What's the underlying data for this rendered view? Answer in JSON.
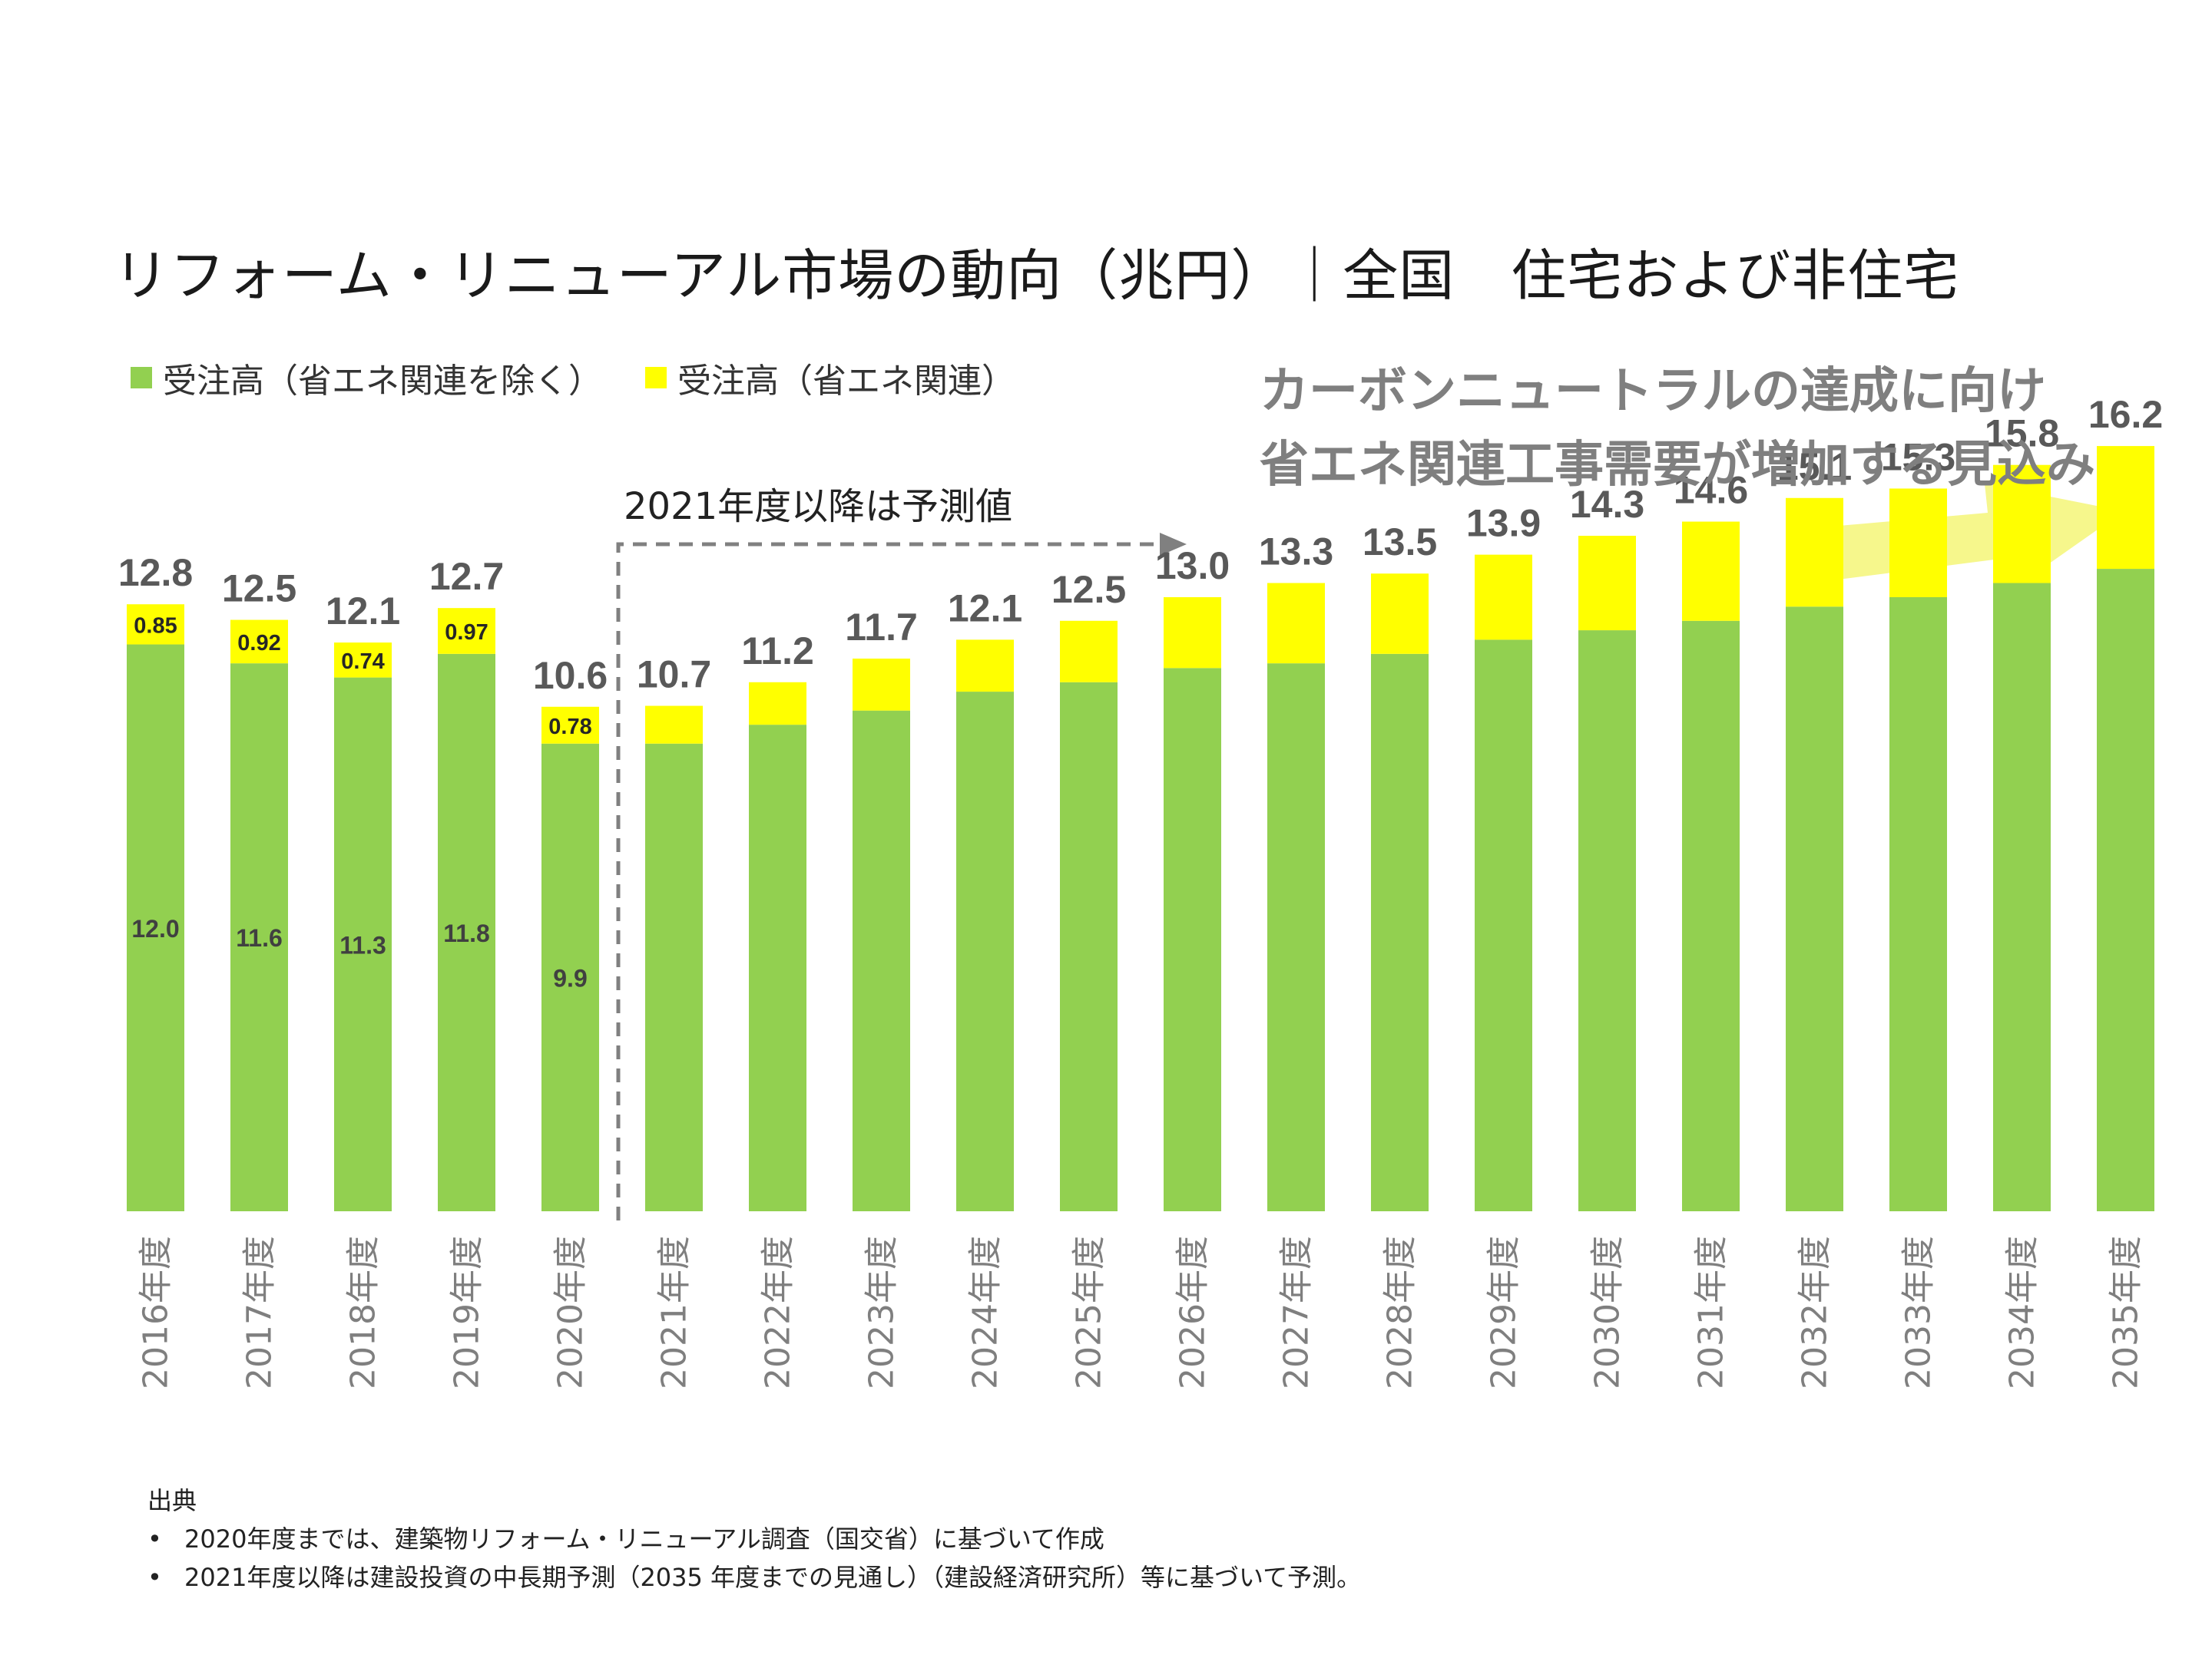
{
  "page": {
    "title": "リフォーム・リニューアル市場の動向（兆円）｜全国　住宅および非住宅",
    "legend": [
      {
        "label": "受注高（省エネ関連を除く）",
        "color": "#92d050"
      },
      {
        "label": "受注高（省エネ関連）",
        "color": "#ffff00"
      }
    ],
    "headline_line1": "カーボンニュートラルの達成に向け",
    "headline_line2": "省エネ関連工事需要が増加する見込み",
    "forecast_note": "2021年度以降は予測値",
    "source": {
      "heading": "出典",
      "items": [
        "2020年度までは、建築物リフォーム・リニューアル調査（国交省）に基づいて作成",
        "2021年度以降は建設投資の中長期予測（2035 年度までの見通し）（建設経済研究所）等に基づいて予測。"
      ]
    }
  },
  "colors": {
    "green": "#92d050",
    "yellow": "#ffff00",
    "arrow": "#f6f78c",
    "label_gray": "#595959",
    "axis_gray": "#7f7f7f"
  },
  "chart_data": {
    "type": "bar",
    "stacked": true,
    "title": "リフォーム・リニューアル市場の動向（兆円）｜全国　住宅および非住宅",
    "unit": "兆円",
    "categories": [
      "2016年度",
      "2017年度",
      "2018年度",
      "2019年度",
      "2020年度",
      "2021年度",
      "2022年度",
      "2023年度",
      "2024年度",
      "2025年度",
      "2026年度",
      "2027年度",
      "2028年度",
      "2029年度",
      "2030年度",
      "2031年度",
      "2032年度",
      "2033年度",
      "2034年度",
      "2035年度"
    ],
    "series": [
      {
        "name": "受注高（省エネ関連を除く）",
        "values": [
          12.0,
          11.6,
          11.3,
          11.8,
          9.9,
          9.9,
          10.3,
          10.6,
          11.0,
          11.2,
          11.5,
          11.6,
          11.8,
          12.1,
          12.3,
          12.5,
          12.8,
          13.0,
          13.3,
          13.6
        ],
        "labels": [
          "12.0",
          "11.6",
          "11.3",
          "11.8",
          "9.9",
          "",
          "",
          "",
          "",
          "",
          "",
          "",
          "",
          "",
          "",
          "",
          "",
          "",
          "",
          ""
        ]
      },
      {
        "name": "受注高（省エネ関連）",
        "values": [
          0.85,
          0.92,
          0.74,
          0.97,
          0.78,
          0.8,
          0.9,
          1.1,
          1.1,
          1.3,
          1.5,
          1.7,
          1.7,
          1.8,
          2.0,
          2.1,
          2.3,
          2.3,
          2.5,
          2.6
        ],
        "labels": [
          "0.85",
          "0.92",
          "0.74",
          "0.97",
          "0.78",
          "",
          "",
          "",
          "",
          "",
          "",
          "",
          "",
          "",
          "",
          "",
          "",
          "",
          "",
          ""
        ]
      }
    ],
    "totals": [
      "12.8",
      "12.5",
      "12.1",
      "12.7",
      "10.6",
      "10.7",
      "11.2",
      "11.7",
      "12.1",
      "12.5",
      "13.0",
      "13.3",
      "13.5",
      "13.9",
      "14.3",
      "14.6",
      "15.1",
      "15.3",
      "15.8",
      "16.2"
    ],
    "forecast_start": "2021年度",
    "ylim": [
      0,
      19.5
    ],
    "xlabel": "",
    "ylabel": ""
  }
}
